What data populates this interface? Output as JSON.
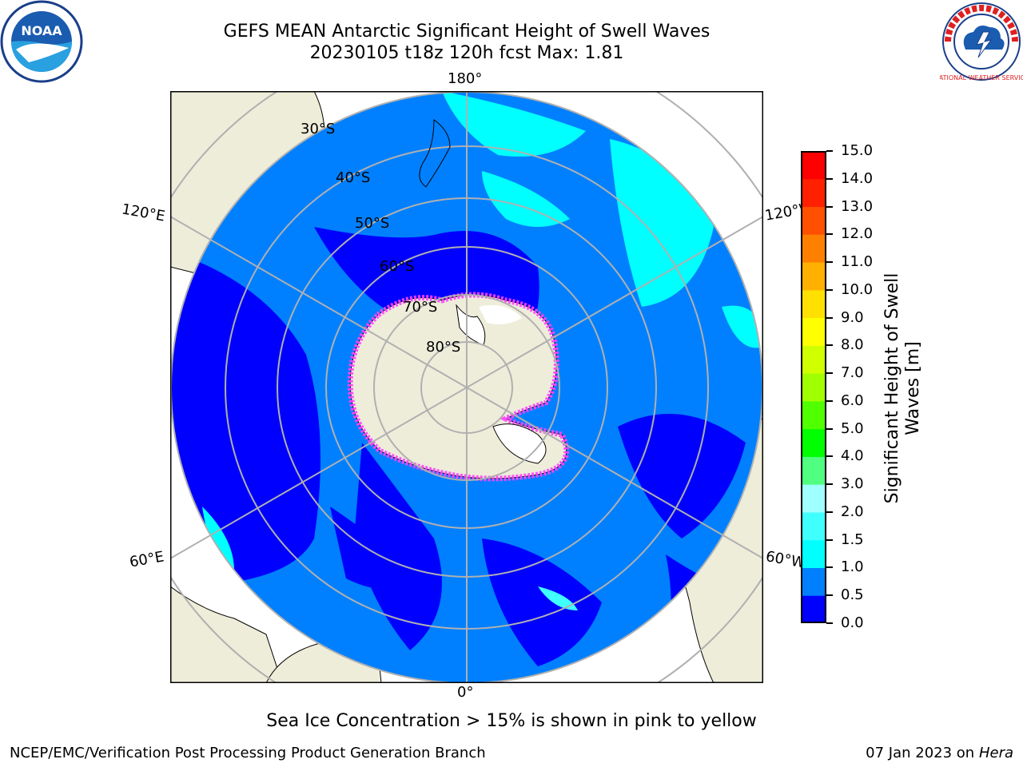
{
  "title": {
    "line1": "GEFS MEAN Antarctic Significant Height of Swell Waves",
    "line2": "20230105 t18z 120h fcst   Max: 1.81"
  },
  "map": {
    "projection": "south polar stereographic",
    "lon_labels": {
      "top": "180°",
      "bottom": "0°",
      "left_upper": "120°E",
      "left_lower": "60°E",
      "right_upper": "120°W",
      "right_lower": "60°W"
    },
    "lat_labels": [
      "30°S",
      "40°S",
      "50°S",
      "60°S",
      "70°S",
      "80°S"
    ],
    "colors": {
      "land": "#eeedda",
      "antarctica": "#eeedda",
      "ocean_low": "#0000ff",
      "ocean_mid": "#0080ff",
      "ocean_high": "#00ffff",
      "sea_ice_edge": "#ff40ff",
      "sea_ice_core": "#ffffff",
      "grid": "#b0b0b0"
    }
  },
  "colorbar": {
    "label": "Significant Height of Swell Waves [m]",
    "ticks": [
      "0.0",
      "0.5",
      "1.0",
      "1.5",
      "2.0",
      "3.0",
      "4.0",
      "5.0",
      "6.0",
      "7.0",
      "8.0",
      "9.0",
      "10.0",
      "11.0",
      "12.0",
      "13.0",
      "14.0",
      "15.0"
    ],
    "colors": [
      "#0000ff",
      "#0080ff",
      "#00ffff",
      "#40ffff",
      "#a0ffff",
      "#50ff80",
      "#00ff00",
      "#50ff00",
      "#a0ff00",
      "#d0ff00",
      "#ffff00",
      "#ffe000",
      "#ffb000",
      "#ff8000",
      "#ff5000",
      "#ff2000",
      "#ff0000"
    ]
  },
  "note": "Sea Ice Concentration > 15% is shown in pink to yellow",
  "footer": {
    "left": "NCEP/EMC/Verification Post Processing Product Generation Branch",
    "date": "07 Jan 2023 on",
    "host": "Hera"
  },
  "logos": {
    "left": "NOAA",
    "right": "NATIONAL WEATHER SERVICE"
  }
}
